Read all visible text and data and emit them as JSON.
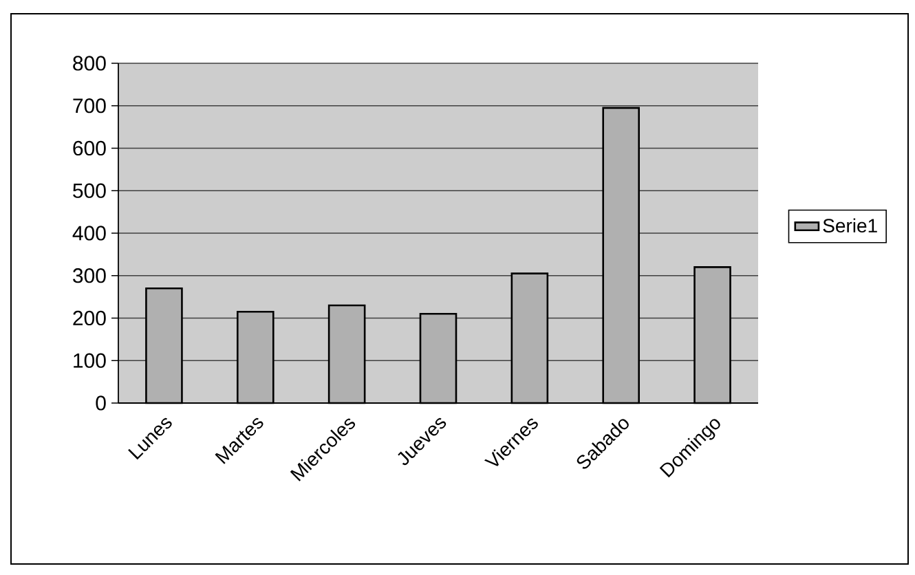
{
  "chart_data": {
    "type": "bar",
    "categories": [
      "Lunes",
      "Martes",
      "Miercoles",
      "Jueves",
      "Viernes",
      "Sabado",
      "Domingo"
    ],
    "series": [
      {
        "name": "Serie1",
        "color": "#b0b0b0",
        "values": [
          270,
          215,
          230,
          210,
          305,
          695,
          320
        ]
      }
    ],
    "ylim": [
      0,
      800
    ],
    "yticks": [
      0,
      100,
      200,
      300,
      400,
      500,
      600,
      700,
      800
    ],
    "grid": "y",
    "legend": "right"
  }
}
